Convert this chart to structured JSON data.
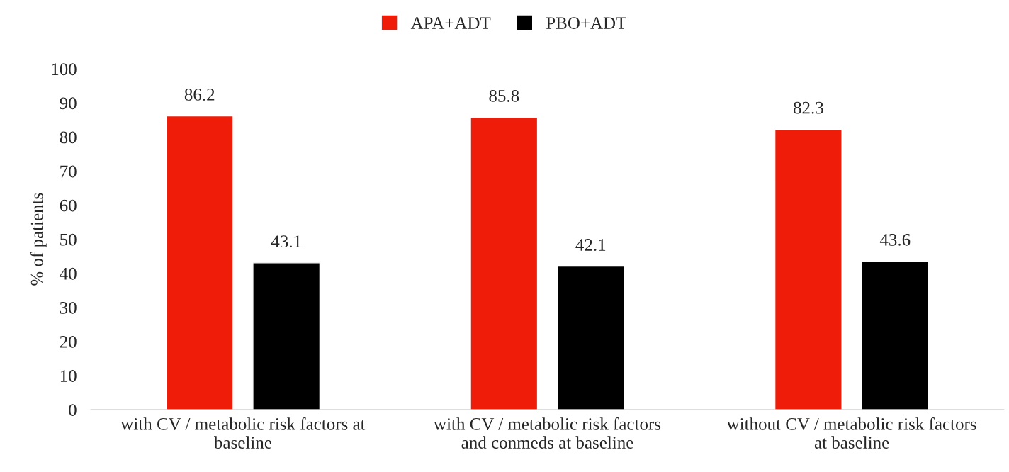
{
  "chart_data": {
    "type": "bar",
    "ylabel": "% of patients",
    "categories": [
      "with CV / metabolic risk factors at\nbaseline",
      "with CV / metabolic risk factors\nand conmeds at baseline",
      "without CV / metabolic risk factors\nat baseline"
    ],
    "series": [
      {
        "name": "APA+ADT",
        "color": "#ee1c09",
        "values": [
          86.2,
          85.8,
          82.3
        ]
      },
      {
        "name": "PBO+ADT",
        "color": "#000000",
        "values": [
          43.1,
          42.1,
          43.6
        ]
      }
    ],
    "ylim": [
      0,
      100
    ],
    "yticks": [
      0,
      10,
      20,
      30,
      40,
      50,
      60,
      70,
      80,
      90,
      100
    ],
    "data_labels": true,
    "grid": false,
    "legend": "top"
  }
}
